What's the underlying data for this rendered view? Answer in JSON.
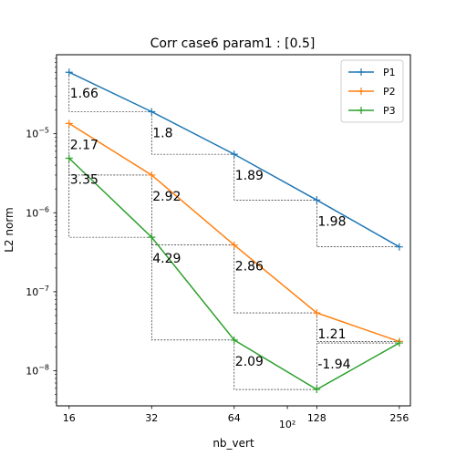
{
  "chart_data": {
    "type": "line",
    "title": "Corr case6 param1 : [0.5]",
    "xlabel": "nb_vert",
    "ylabel": "L2 norm",
    "x_scale": "log",
    "y_scale": "log",
    "xlim": [
      14.4,
      281
    ],
    "ylim": [
      3.6e-09,
      0.0001
    ],
    "x": [
      16,
      32,
      64,
      128,
      256
    ],
    "x_tick_labels": [
      "16",
      "32",
      "64",
      "128",
      "256"
    ],
    "x_extra_tick_label": {
      "value": 100,
      "label": "10²"
    },
    "y_ticks": [
      {
        "value": 1e-08,
        "base": "10",
        "exp": "−8"
      },
      {
        "value": 1e-07,
        "base": "10",
        "exp": "−7"
      },
      {
        "value": 1e-06,
        "base": "10",
        "exp": "−6"
      },
      {
        "value": 1e-05,
        "base": "10",
        "exp": "−5"
      }
    ],
    "grid": false,
    "legend_position": "top-right",
    "series": [
      {
        "name": "P1",
        "color": "#1f77b4",
        "marker": "plus",
        "values": [
          6e-05,
          1.9e-05,
          5.5e-06,
          1.45e-06,
          3.7e-07
        ]
      },
      {
        "name": "P2",
        "color": "#ff7f0e",
        "marker": "plus",
        "values": [
          1.35e-05,
          3e-06,
          3.9e-07,
          5.4e-08,
          2.35e-08
        ]
      },
      {
        "name": "P3",
        "color": "#2ca02c",
        "marker": "plus",
        "values": [
          4.9e-06,
          4.9e-07,
          2.45e-08,
          5.8e-09,
          2.25e-08
        ]
      }
    ],
    "slope_annotations": {
      "P1": [
        "1.66",
        "1.8",
        "1.89",
        "1.98"
      ],
      "P2": [
        "2.17",
        "2.92",
        "2.86",
        "1.21"
      ],
      "P3": [
        "3.35",
        "4.29",
        "2.09",
        "-1.94"
      ]
    }
  }
}
